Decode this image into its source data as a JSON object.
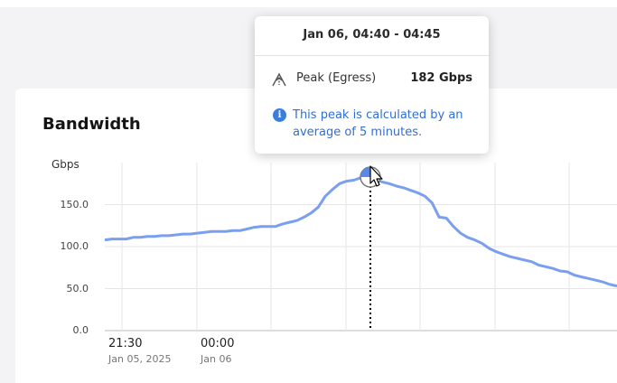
{
  "card": {
    "title": "Bandwidth"
  },
  "chart_data": {
    "type": "line",
    "ylabel": "Gbps",
    "ylim": [
      0,
      200
    ],
    "yticks": [
      "150.0",
      "100.0",
      "50.0",
      "0.0"
    ],
    "ytick_values": [
      150,
      100,
      50,
      0
    ],
    "x_labels": [
      {
        "time": "21:30",
        "date": "Jan 05, 2025"
      },
      {
        "time": "00:00",
        "date": "Jan 06"
      }
    ],
    "series": [
      {
        "color": "#7b9ff0",
        "values": [
          108,
          109,
          109,
          109,
          111,
          111,
          112,
          112,
          113,
          113,
          114,
          115,
          115,
          116,
          117,
          118,
          118,
          118,
          119,
          119,
          121,
          123,
          124,
          124,
          124,
          127,
          129,
          131,
          135,
          140,
          147,
          160,
          168,
          175,
          178,
          179,
          182,
          180,
          180,
          177,
          175,
          172,
          170,
          167,
          164,
          160,
          152,
          135,
          134,
          124,
          116,
          111,
          108,
          104,
          98,
          94,
          91,
          88,
          86,
          84,
          82,
          78,
          76,
          74,
          71,
          70,
          66,
          64,
          62,
          60,
          58,
          55,
          53
        ]
      }
    ],
    "peak_index": 36,
    "grid": true
  },
  "tooltip": {
    "time_range": "Jan 06, 04:40 - 04:45",
    "metric_icon": "peak-egress-icon",
    "metric_label": "Peak (Egress)",
    "metric_value": "182 Gbps",
    "info_text": "This peak is calculated by an average of 5 minutes."
  }
}
